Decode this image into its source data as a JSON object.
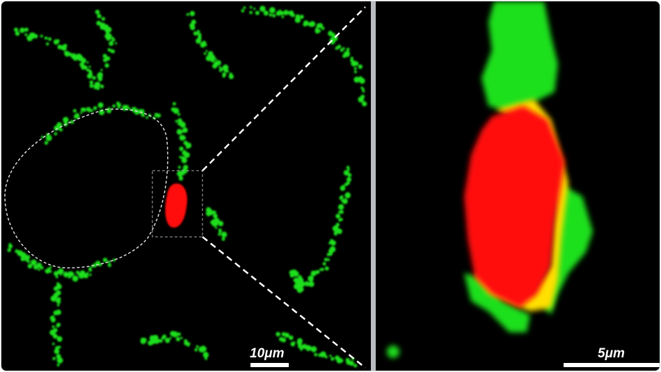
{
  "figure": {
    "left_panel": {
      "scale_label": "10μm",
      "channels": {
        "green": "#1fe01f",
        "red": "#ff0a0a",
        "overlap": "#ffe000"
      }
    },
    "right_panel": {
      "scale_label": "5μm"
    },
    "divider_color": "#b9bcc0"
  }
}
